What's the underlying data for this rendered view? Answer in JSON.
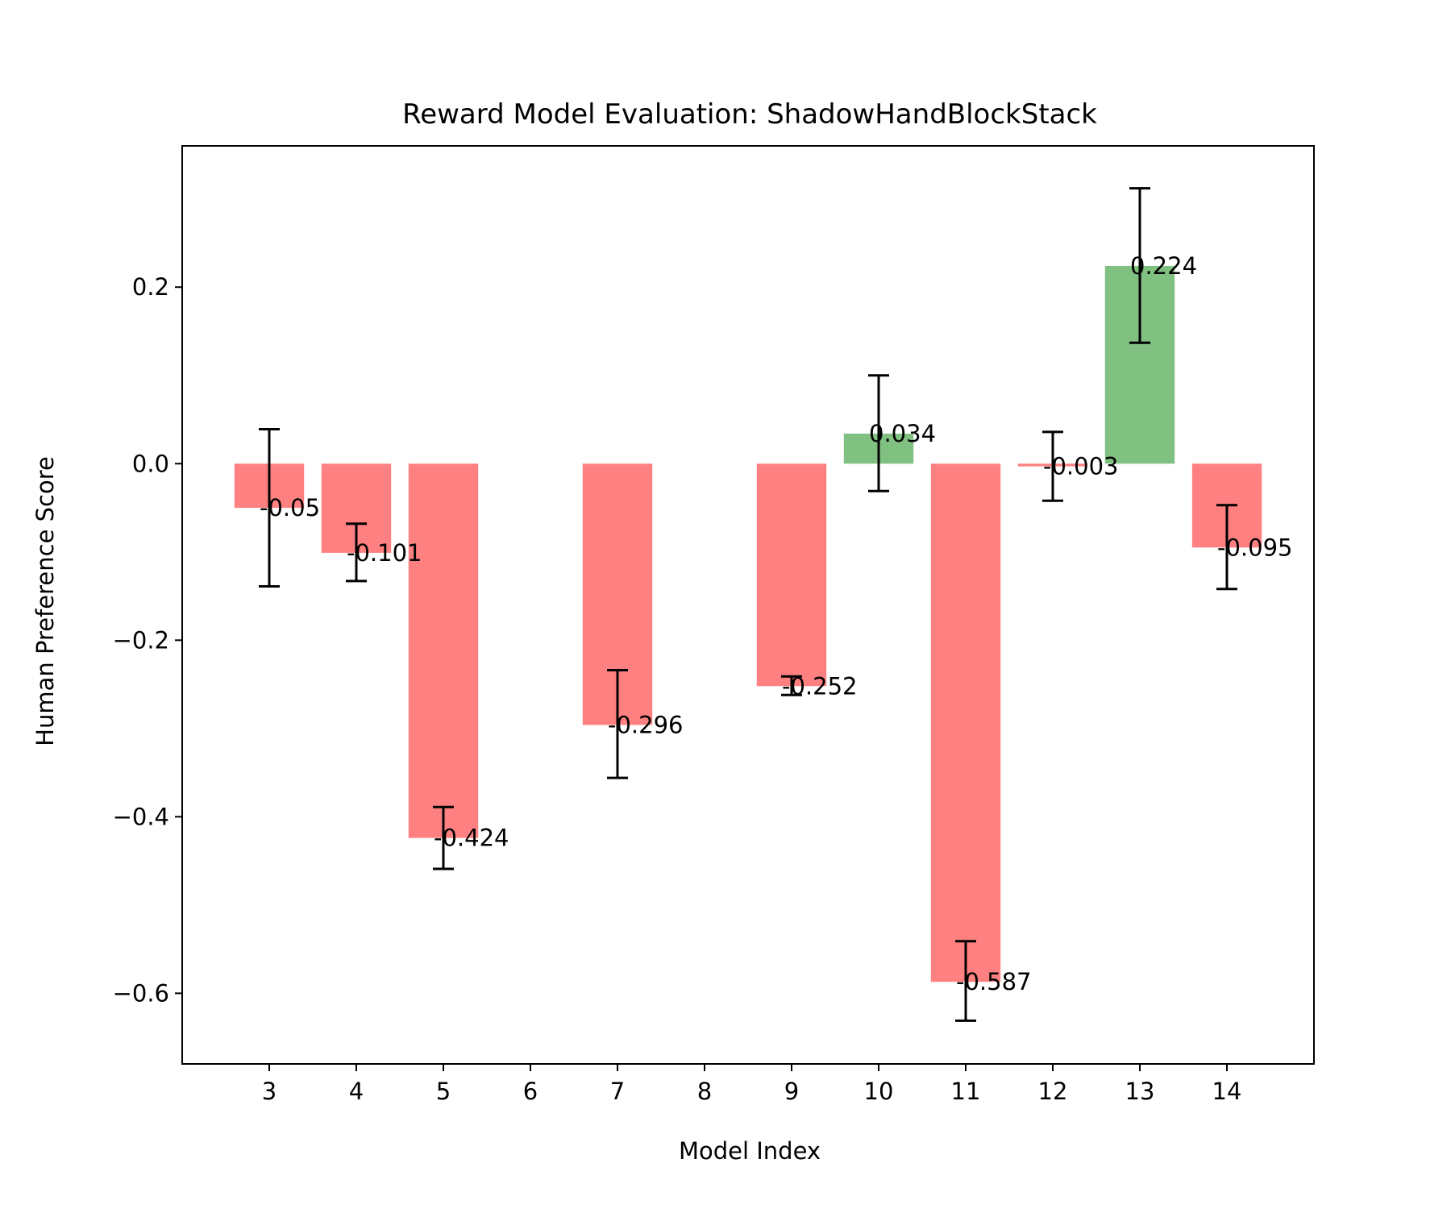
{
  "chart_data": {
    "type": "bar",
    "title": "Reward Model Evaluation: ShadowHandBlockStack",
    "xlabel": "Model Index",
    "ylabel": "Human Preference Score",
    "x": [
      3,
      4,
      5,
      7,
      9,
      10,
      11,
      12,
      13,
      14
    ],
    "values": [
      -0.05,
      -0.101,
      -0.424,
      -0.296,
      -0.252,
      0.034,
      -0.587,
      -0.003,
      0.224,
      -0.095
    ],
    "value_labels": [
      "-0.05",
      "-0.101",
      "-0.424",
      "-0.296",
      "-0.252",
      "0.034",
      "-0.587",
      "-0.003",
      "0.224",
      "-0.095"
    ],
    "error_center": [
      -0.05,
      -0.101,
      -0.424,
      -0.296,
      -0.252,
      0.034,
      -0.587,
      -0.003,
      0.224,
      -0.095
    ],
    "error_low": [
      -0.139,
      -0.133,
      -0.459,
      -0.356,
      -0.262,
      -0.031,
      -0.631,
      -0.042,
      0.137,
      -0.142
    ],
    "error_high": [
      0.039,
      -0.068,
      -0.389,
      -0.234,
      -0.241,
      0.1,
      -0.541,
      0.036,
      0.312,
      -0.047
    ],
    "xticks": [
      3,
      4,
      5,
      6,
      7,
      8,
      9,
      10,
      11,
      12,
      13,
      14
    ],
    "yticks": [
      0.2,
      0.0,
      -0.2,
      -0.4,
      -0.6
    ],
    "ytick_labels": [
      "0.2",
      "0.0",
      "−0.2",
      "−0.4",
      "−0.6"
    ],
    "xlim": [
      2,
      15
    ],
    "ylim": [
      -0.68,
      0.36
    ],
    "grid": false,
    "colors": {
      "positive": "#80c080",
      "negative": "#ff8080",
      "error": "#000000",
      "axes": "#000000"
    }
  }
}
